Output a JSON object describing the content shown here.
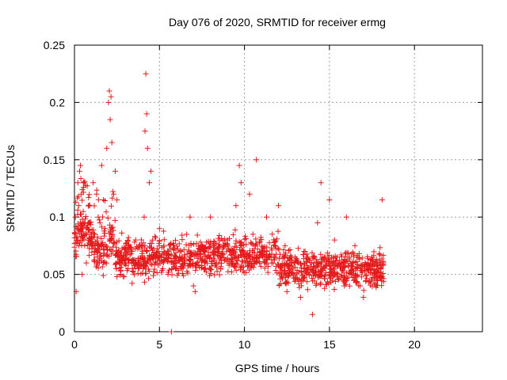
{
  "chart_data": {
    "type": "scatter",
    "title": "Day 076 of 2020, SRMTID for receiver ermg",
    "xlabel": "GPS time / hours",
    "ylabel": "SRMTID / TECUs",
    "xlim": [
      0,
      24
    ],
    "ylim": [
      0,
      0.25
    ],
    "xticks": [
      0,
      5,
      10,
      15,
      20
    ],
    "yticks": [
      0,
      0.05,
      0.1,
      0.15,
      0.2,
      0.25
    ],
    "xtick_labels": [
      "0",
      "5",
      "10",
      "15",
      "20"
    ],
    "ytick_labels": [
      "0",
      "0.05",
      "0.1",
      "0.15",
      "0.2",
      "0.25"
    ],
    "grid": true,
    "marker": "+",
    "marker_color": "#e41a1c",
    "series": [
      {
        "name": "SRMTID",
        "color": "#e41a1c",
        "data_extent": {
          "x_range": [
            0,
            18.2
          ],
          "y_typical_range": [
            0.02,
            0.12
          ]
        },
        "points": [
          [
            0.0,
            0.082
          ],
          [
            0.05,
            0.1
          ],
          [
            0.1,
            0.035
          ],
          [
            0.15,
            0.09
          ],
          [
            0.2,
            0.13
          ],
          [
            0.25,
            0.11
          ],
          [
            0.3,
            0.14
          ],
          [
            0.35,
            0.145
          ],
          [
            0.4,
            0.12
          ],
          [
            0.45,
            0.05
          ],
          [
            0.5,
            0.09
          ],
          [
            0.6,
            0.075
          ],
          [
            0.7,
            0.06
          ],
          [
            0.8,
            0.095
          ],
          [
            0.9,
            0.11
          ],
          [
            1.0,
            0.085
          ],
          [
            1.1,
            0.13
          ],
          [
            1.2,
            0.07
          ],
          [
            1.3,
            0.12
          ],
          [
            1.4,
            0.1
          ],
          [
            1.5,
            0.095
          ],
          [
            1.6,
            0.145
          ],
          [
            1.7,
            0.115
          ],
          [
            1.8,
            0.09
          ],
          [
            1.9,
            0.16
          ],
          [
            2.0,
            0.2
          ],
          [
            2.05,
            0.21
          ],
          [
            2.1,
            0.185
          ],
          [
            2.15,
            0.205
          ],
          [
            2.2,
            0.165
          ],
          [
            2.3,
            0.12
          ],
          [
            2.4,
            0.14
          ],
          [
            2.5,
            0.115
          ],
          [
            2.6,
            0.07
          ],
          [
            2.7,
            0.05
          ],
          [
            2.8,
            0.065
          ],
          [
            3.0,
            0.06
          ],
          [
            3.2,
            0.075
          ],
          [
            3.4,
            0.055
          ],
          [
            3.6,
            0.08
          ],
          [
            3.8,
            0.06
          ],
          [
            4.0,
            0.07
          ],
          [
            4.1,
            0.1
          ],
          [
            4.15,
            0.175
          ],
          [
            4.2,
            0.225
          ],
          [
            4.25,
            0.19
          ],
          [
            4.3,
            0.16
          ],
          [
            4.4,
            0.13
          ],
          [
            4.5,
            0.14
          ],
          [
            4.6,
            0.08
          ],
          [
            4.8,
            0.06
          ],
          [
            5.0,
            0.09
          ],
          [
            5.2,
            0.055
          ],
          [
            5.5,
            0.05
          ],
          [
            5.7,
            0.0
          ],
          [
            6.0,
            0.065
          ],
          [
            6.3,
            0.07
          ],
          [
            6.6,
            0.085
          ],
          [
            6.8,
            0.1
          ],
          [
            7.0,
            0.04
          ],
          [
            7.1,
            0.035
          ],
          [
            7.2,
            0.06
          ],
          [
            7.5,
            0.075
          ],
          [
            7.8,
            0.065
          ],
          [
            8.0,
            0.1
          ],
          [
            8.3,
            0.07
          ],
          [
            8.6,
            0.055
          ],
          [
            9.0,
            0.08
          ],
          [
            9.3,
            0.06
          ],
          [
            9.5,
            0.11
          ],
          [
            9.7,
            0.145
          ],
          [
            9.8,
            0.13
          ],
          [
            10.0,
            0.065
          ],
          [
            10.3,
            0.12
          ],
          [
            10.5,
            0.085
          ],
          [
            10.7,
            0.15
          ],
          [
            11.0,
            0.07
          ],
          [
            11.3,
            0.1
          ],
          [
            11.6,
            0.06
          ],
          [
            12.0,
            0.11
          ],
          [
            12.2,
            0.05
          ],
          [
            12.5,
            0.035
          ],
          [
            12.8,
            0.06
          ],
          [
            13.0,
            0.045
          ],
          [
            13.3,
            0.03
          ],
          [
            13.5,
            0.07
          ],
          [
            13.8,
            0.05
          ],
          [
            14.0,
            0.015
          ],
          [
            14.3,
            0.095
          ],
          [
            14.5,
            0.13
          ],
          [
            14.8,
            0.06
          ],
          [
            15.0,
            0.115
          ],
          [
            15.3,
            0.08
          ],
          [
            15.5,
            0.06
          ],
          [
            15.8,
            0.045
          ],
          [
            16.0,
            0.1
          ],
          [
            16.3,
            0.05
          ],
          [
            16.5,
            0.075
          ],
          [
            16.8,
            0.04
          ],
          [
            17.0,
            0.03
          ],
          [
            17.2,
            0.055
          ],
          [
            17.5,
            0.065
          ],
          [
            17.8,
            0.045
          ],
          [
            18.0,
            0.06
          ],
          [
            18.1,
            0.115
          ]
        ]
      }
    ]
  }
}
